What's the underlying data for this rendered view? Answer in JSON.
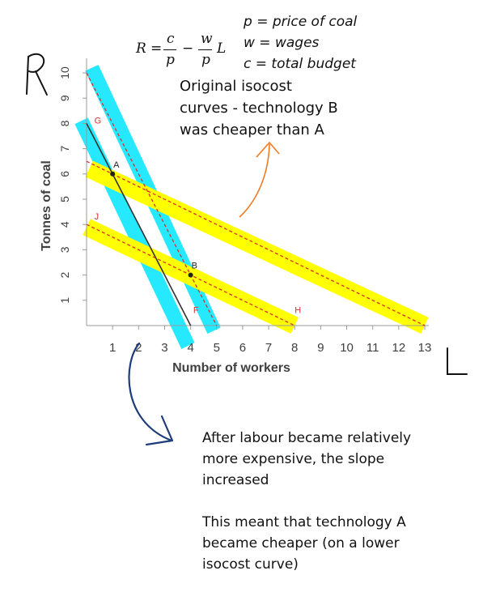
{
  "formula": {
    "lhs": "R",
    "eq": "=",
    "num1": "c",
    "den1": "p",
    "minus": "−",
    "num2": "w",
    "den2": "p",
    "var": "L"
  },
  "legend": {
    "p": "p = price of coal",
    "w": "w = wages",
    "c": "c = total budget"
  },
  "annotation_original": [
    "Original isocost",
    "curves - technology B",
    "was cheaper than A"
  ],
  "annotation_after": {
    "p1": [
      "After labour became relatively",
      "more expensive, the slope",
      "increased"
    ],
    "p2": [
      "This meant that technology A",
      "became cheaper (on a lower",
      "isocost curve)"
    ]
  },
  "handwritten": {
    "r_axis": "R",
    "l_axis": "L"
  },
  "colors": {
    "yellow": "#ffff00",
    "cyan": "#00e5ff",
    "red_dash": "#d83030",
    "orange_arrow": "#f07a20",
    "blue_arrow": "#1e3d7a",
    "axis": "#999999"
  },
  "chart_data": {
    "type": "line",
    "xlabel": "Number of workers",
    "ylabel": "Tonnes of coal",
    "xlim": [
      0,
      13
    ],
    "ylim": [
      0,
      10
    ],
    "x_ticks": [
      "1",
      "2",
      "3",
      "4",
      "5",
      "6",
      "7",
      "8",
      "9",
      "10",
      "11",
      "12",
      "13"
    ],
    "y_ticks": [
      "1",
      "2",
      "3",
      "4",
      "5",
      "6",
      "7",
      "8",
      "9",
      "10"
    ],
    "lines": [
      {
        "from": [
          0,
          10
        ],
        "to": [
          5,
          0
        ],
        "style": "dashed",
        "color": "#d83030"
      },
      {
        "from": [
          0,
          8
        ],
        "to": [
          4,
          0
        ],
        "style": "solid",
        "color": "#333333"
      },
      {
        "from": [
          0,
          6.5
        ],
        "to": [
          13,
          0
        ],
        "style": "dashed",
        "color": "#d83030"
      },
      {
        "from": [
          0,
          4
        ],
        "to": [
          8,
          0
        ],
        "style": "dashed",
        "color": "#d83030"
      }
    ],
    "highlights": [
      {
        "from": [
          0.2,
          10.2
        ],
        "to": [
          4.9,
          -0.2
        ],
        "color": "cyan"
      },
      {
        "from": [
          -0.2,
          8.1
        ],
        "to": [
          3.9,
          -0.8
        ],
        "color": "cyan"
      },
      {
        "from": [
          0.1,
          6.2
        ],
        "to": [
          13,
          0
        ],
        "color": "yellow"
      },
      {
        "from": [
          0,
          3.9
        ],
        "to": [
          8,
          0
        ],
        "color": "yellow"
      }
    ],
    "points": [
      {
        "label": "A",
        "x": 1.0,
        "y": 6.0
      },
      {
        "label": "B",
        "x": 4.0,
        "y": 2.0
      }
    ],
    "line_labels": [
      {
        "label": "G",
        "x": 0.3,
        "y": 8.0
      },
      {
        "label": "J",
        "x": 0.3,
        "y": 4.2
      },
      {
        "label": "F",
        "x": 4.1,
        "y": 0.5
      },
      {
        "label": "H",
        "x": 8.0,
        "y": 0.5
      }
    ]
  }
}
